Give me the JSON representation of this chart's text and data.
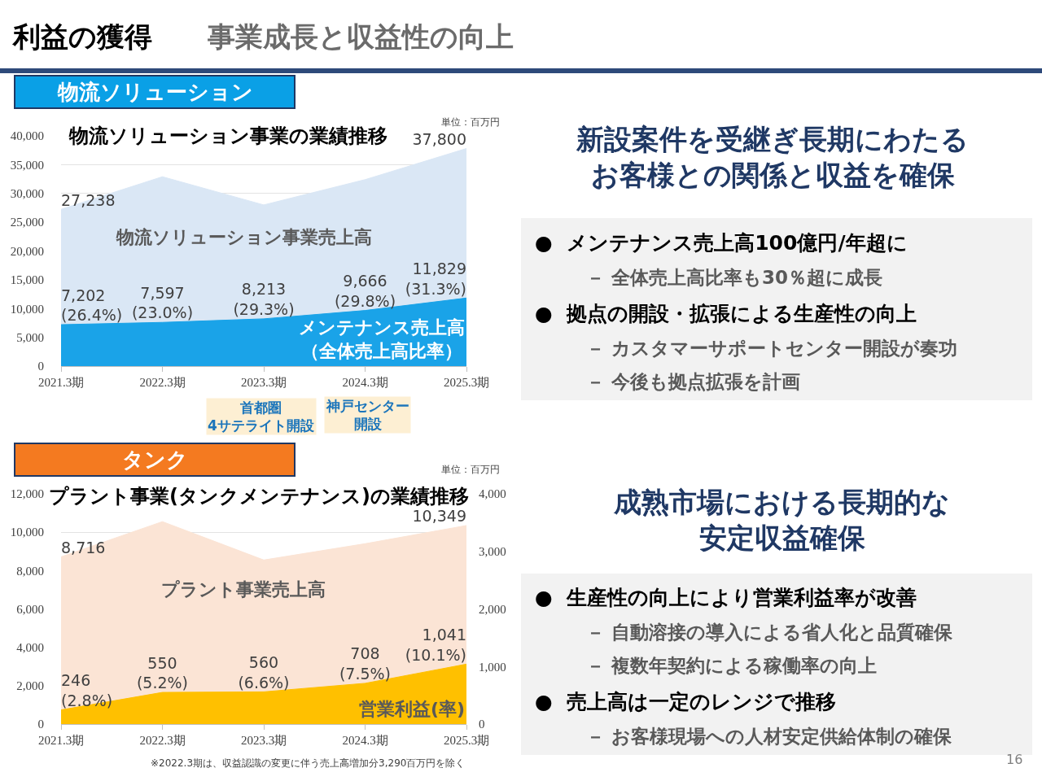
{
  "chart_data": [
    {
      "type": "other",
      "title": "利益の獲得",
      "subtitle": "事業成長と収益性の向上",
      "annotations": [
        "16"
      ]
    },
    {
      "type": "area",
      "title": "物流ソリューション事業の業績推移",
      "categories": [
        "2021.3期",
        "2022.3期",
        "2023.3期",
        "2024.3期",
        "2025.3期"
      ],
      "ylim": [
        0,
        40000
      ],
      "yticks": [
        0,
        {
          "value": 5000,
          "label": "5,000"
        },
        {
          "value": 10000,
          "label": "10,000"
        },
        {
          "value": 15000,
          "label": "15,000"
        },
        {
          "value": 20000,
          "label": "20,000"
        },
        {
          "value": 25000,
          "label": "25,000"
        },
        {
          "value": 30000,
          "label": "30,000"
        },
        {
          "value": 35000,
          "label": "35,000"
        },
        {
          "value": 40000,
          "label": "40,000"
        }
      ],
      "grid": "y",
      "legend": false,
      "series": [
        {
          "name": "物流ソリューション事業売上高",
          "color": "#dae7f5",
          "values": [
            27238,
            32900,
            28000,
            32400,
            37800
          ],
          "value_labels": [
            "27,238",
            null,
            null,
            null,
            "37,800"
          ]
        },
        {
          "name": "メンテナンス売上高（全体売上高比率）",
          "color": "#1aa3e8",
          "values": [
            7202,
            7597,
            8213,
            9666,
            11829
          ],
          "value_labels": [
            "7,202\n(26.4%)",
            "7,597\n(23.0%)",
            "8,213\n(29.3%)",
            "9,666\n(29.8%)",
            "11,829\n(31.3%)"
          ]
        }
      ],
      "annotations": [
        "物流ソリューション",
        "単位：百万円",
        "首都圏4サテライト開設",
        "神戸センター開設"
      ]
    },
    {
      "type": "other",
      "title": "新設案件を受継ぎ長期にわたるお客様との関係と収益を確保",
      "annotations": [
        "●  メンテナンス売上高100億円/年超に",
        "－ 全体売上高比率も30％超に成長",
        "●  拠点の開設・拡張による生産性の向上",
        "－ カスタマーサポートセンター開設が奏功",
        "－ 今後も拠点拡張を計画"
      ]
    },
    {
      "type": "area",
      "title": "プラント事業(タンクメンテナンス)の業績推移",
      "categories": [
        "2021.3期",
        "2022.3期",
        "2023.3期",
        "2024.3期",
        "2025.3期"
      ],
      "ylim": [
        0,
        12000
      ],
      "yticks": [
        0,
        {
          "value": 2000,
          "label": "2,000"
        },
        {
          "value": 4000,
          "label": "4,000"
        },
        {
          "value": 6000,
          "label": "6,000"
        },
        {
          "value": 8000,
          "label": "8,000"
        },
        {
          "value": 10000,
          "label": "10,000"
        },
        {
          "value": 12000,
          "label": "12,000"
        }
      ],
      "y2lim": [
        0,
        4000
      ],
      "y2ticks": [
        0,
        {
          "value": 1000,
          "label": "1,000"
        },
        {
          "value": 2000,
          "label": "2,000"
        },
        {
          "value": 3000,
          "label": "3,000"
        },
        {
          "value": 4000,
          "label": "4,000"
        }
      ],
      "grid": "y",
      "legend": false,
      "series": [
        {
          "name": "プラント事業売上高",
          "color": "#fbe4d5",
          "values": [
            8716,
            10550,
            8550,
            9400,
            10349
          ],
          "value_labels": [
            "8,716",
            null,
            null,
            null,
            "10,349"
          ]
        },
        {
          "name": "営業利益(率)",
          "color": "#ffc000",
          "axis": "y2",
          "values": [
            246,
            550,
            560,
            708,
            1041
          ],
          "value_labels": [
            "246\n(2.8%)",
            "550\n(5.2%)",
            "560\n(6.6%)",
            "708\n(7.5%)",
            "1,041\n(10.1%)"
          ]
        }
      ],
      "annotations": [
        "タンク",
        "単位：百万円",
        "※2022.3期は、収益認識の変更に伴う売上高増加分3,290百万円を除く"
      ]
    },
    {
      "type": "other",
      "title": "成熟市場における長期的な安定収益確保",
      "annotations": [
        "●  生産性の向上により営業利益率が改善",
        "－ 自動溶接の導入による省人化と品質確保",
        "－ 複数年契約による稼働率の向上",
        "●  売上高は一定のレンジで推移",
        "－ お客様現場への人材安定供給体制の確保"
      ]
    }
  ]
}
